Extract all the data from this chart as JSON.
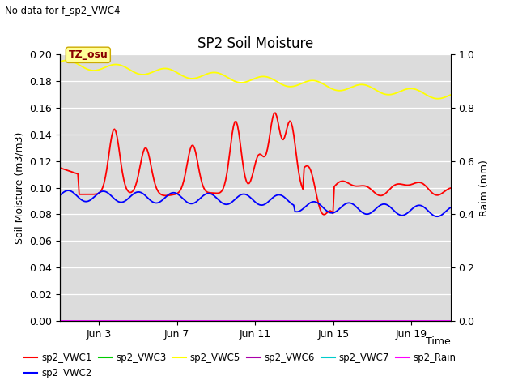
{
  "title": "SP2 Soil Moisture",
  "no_data_text": "No data for f_sp2_VWC4",
  "ylabel_left": "Soil Moisture (m3/m3)",
  "ylabel_right": "Raim (mm)",
  "xlabel": "Time",
  "ylim_left": [
    0.0,
    0.2
  ],
  "ylim_right": [
    0.0,
    1.0
  ],
  "background_color": "#dcdcdc",
  "figure_color": "#ffffff",
  "tz_label": "TZ_osu",
  "tz_bg": "#ffff99",
  "tz_border": "#ccaa00",
  "tz_text_color": "#880000",
  "x_ticks_labels": [
    "Jun 3",
    "Jun 7",
    "Jun 11",
    "Jun 15",
    "Jun 19"
  ],
  "x_ticks_pos": [
    2,
    6,
    10,
    14,
    18
  ],
  "yticks_left": [
    0.0,
    0.02,
    0.04,
    0.06,
    0.08,
    0.1,
    0.12,
    0.14,
    0.16,
    0.18,
    0.2
  ],
  "yticks_right": [
    0.0,
    0.2,
    0.4,
    0.6,
    0.8,
    1.0
  ],
  "legend_entries": [
    {
      "label": "sp2_VWC1",
      "color": "#ff0000"
    },
    {
      "label": "sp2_VWC2",
      "color": "#0000ff"
    },
    {
      "label": "sp2_VWC3",
      "color": "#00cc00"
    },
    {
      "label": "sp2_VWC5",
      "color": "#ffff00"
    },
    {
      "label": "sp2_VWC6",
      "color": "#aa00aa"
    },
    {
      "label": "sp2_VWC7",
      "color": "#00cccc"
    },
    {
      "label": "sp2_Rain",
      "color": "#ff00ff"
    }
  ]
}
